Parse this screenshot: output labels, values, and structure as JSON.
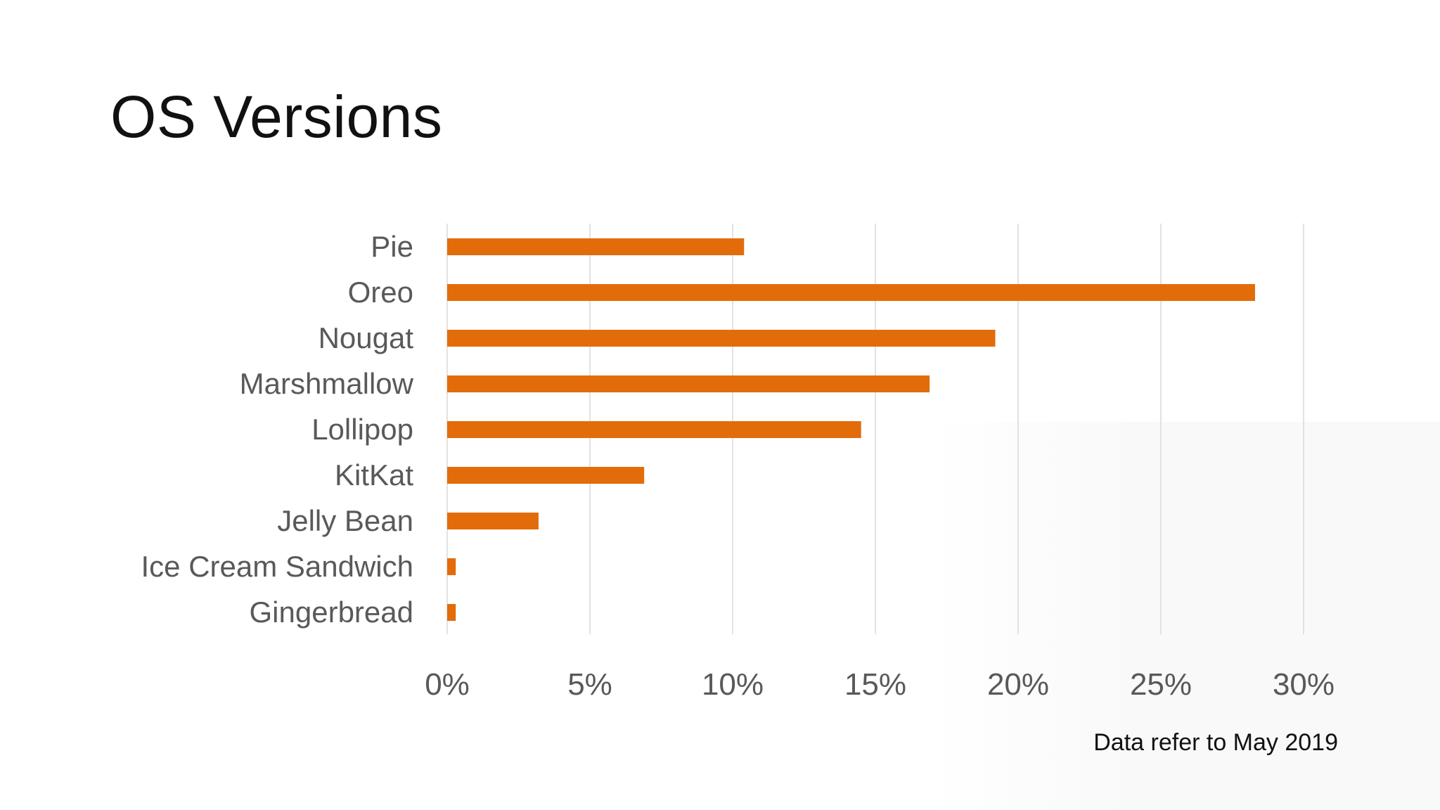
{
  "title": "OS Versions",
  "footnote": "Data refer to May 2019",
  "colors": {
    "bar": "#E36C0A",
    "grid": "#D9D9D9",
    "label": "#595959"
  },
  "chart_data": {
    "type": "bar",
    "orientation": "horizontal",
    "categories": [
      "Pie",
      "Oreo",
      "Nougat",
      "Marshmallow",
      "Lollipop",
      "KitKat",
      "Jelly Bean",
      "Ice Cream Sandwich",
      "Gingerbread"
    ],
    "values": [
      10.4,
      28.3,
      19.2,
      16.9,
      14.5,
      6.9,
      3.2,
      0.3,
      0.3
    ],
    "xlim": [
      0,
      30
    ],
    "xticks": [
      0,
      5,
      10,
      15,
      20,
      25,
      30
    ],
    "xtick_labels": [
      "0%",
      "5%",
      "10%",
      "15%",
      "20%",
      "25%",
      "30%"
    ],
    "grid": true,
    "legend": "none"
  }
}
